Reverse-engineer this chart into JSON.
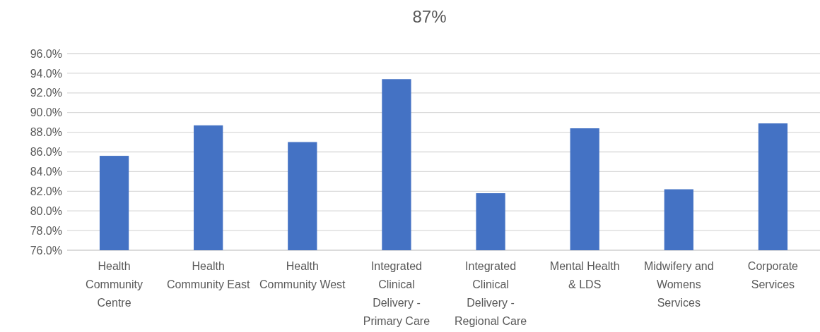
{
  "chart_data": {
    "type": "bar",
    "title": "87%",
    "categories": [
      "Health Community Centre",
      "Health Community East",
      "Health Community West",
      "Integrated Clinical Delivery - Primary Care",
      "Integrated Clinical Delivery - Regional Care",
      "Mental Health & LDS",
      "Midwifery and Womens Services",
      "Corporate Services"
    ],
    "values": [
      85.6,
      88.7,
      87.0,
      93.4,
      81.8,
      88.4,
      82.2,
      88.9
    ],
    "color": "#4472c4",
    "ylim": [
      76,
      96
    ],
    "yticks": [
      {
        "value": 76,
        "label": "76.0%"
      },
      {
        "value": 78,
        "label": "78.0%"
      },
      {
        "value": 80,
        "label": "80.0%"
      },
      {
        "value": 82,
        "label": "82.0%"
      },
      {
        "value": 84,
        "label": "84.0%"
      },
      {
        "value": 86,
        "label": "86.0%"
      },
      {
        "value": 88,
        "label": "88.0%"
      },
      {
        "value": 90,
        "label": "90.0%"
      },
      {
        "value": 92,
        "label": "92.0%"
      },
      {
        "value": 94,
        "label": "94.0%"
      },
      {
        "value": 96,
        "label": "96.0%"
      }
    ],
    "grid": "y"
  }
}
